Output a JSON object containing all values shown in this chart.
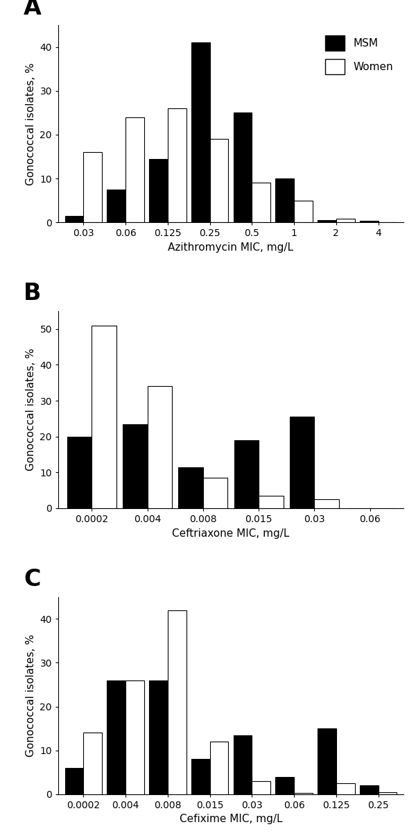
{
  "panel_A": {
    "title_label": "A",
    "xlabel": "Azithromycin MIC, mg/L",
    "ylabel": "Gonococcal isolates, %",
    "categories": [
      "0.03",
      "0.06",
      "0.125",
      "0.25",
      "0.5",
      "1",
      "2",
      "4"
    ],
    "msm": [
      1.5,
      7.5,
      14.5,
      41.0,
      25.0,
      10.0,
      0.5,
      0.3
    ],
    "women": [
      16.0,
      24.0,
      26.0,
      19.0,
      9.0,
      5.0,
      0.8,
      0.0
    ],
    "ylim": [
      0,
      45
    ],
    "yticks": [
      0,
      10,
      20,
      30,
      40
    ]
  },
  "panel_B": {
    "title_label": "B",
    "xlabel": "Ceftriaxone MIC, mg/L",
    "ylabel": "Gonococcal isolates, %",
    "categories": [
      "0.0002",
      "0.004",
      "0.008",
      "0.015",
      "0.03",
      "0.06"
    ],
    "msm": [
      20.0,
      23.5,
      11.5,
      19.0,
      25.5,
      0.0
    ],
    "women": [
      51.0,
      34.0,
      8.5,
      3.5,
      2.5,
      0.0
    ],
    "ylim": [
      0,
      55
    ],
    "yticks": [
      0,
      10,
      20,
      30,
      40,
      50
    ]
  },
  "panel_C": {
    "title_label": "C",
    "xlabel": "Cefixime MIC, mg/L",
    "ylabel": "Gonococcal isolates, %",
    "categories": [
      "0.0002",
      "0.004",
      "0.008",
      "0.015",
      "0.03",
      "0.06",
      "0.125",
      "0.25"
    ],
    "msm": [
      6.0,
      26.0,
      26.0,
      8.0,
      13.5,
      4.0,
      15.0,
      2.0
    ],
    "women": [
      14.0,
      26.0,
      42.0,
      12.0,
      3.0,
      0.3,
      2.5,
      0.5
    ],
    "ylim": [
      0,
      45
    ],
    "yticks": [
      0,
      10,
      20,
      30,
      40
    ]
  },
  "bar_width": 0.44,
  "msm_color": "#000000",
  "women_color": "#ffffff",
  "women_edgecolor": "#000000",
  "legend_labels": [
    "MSM",
    "Women"
  ],
  "label_fontsize": 11,
  "tick_fontsize": 10,
  "panel_label_fontsize": 24
}
